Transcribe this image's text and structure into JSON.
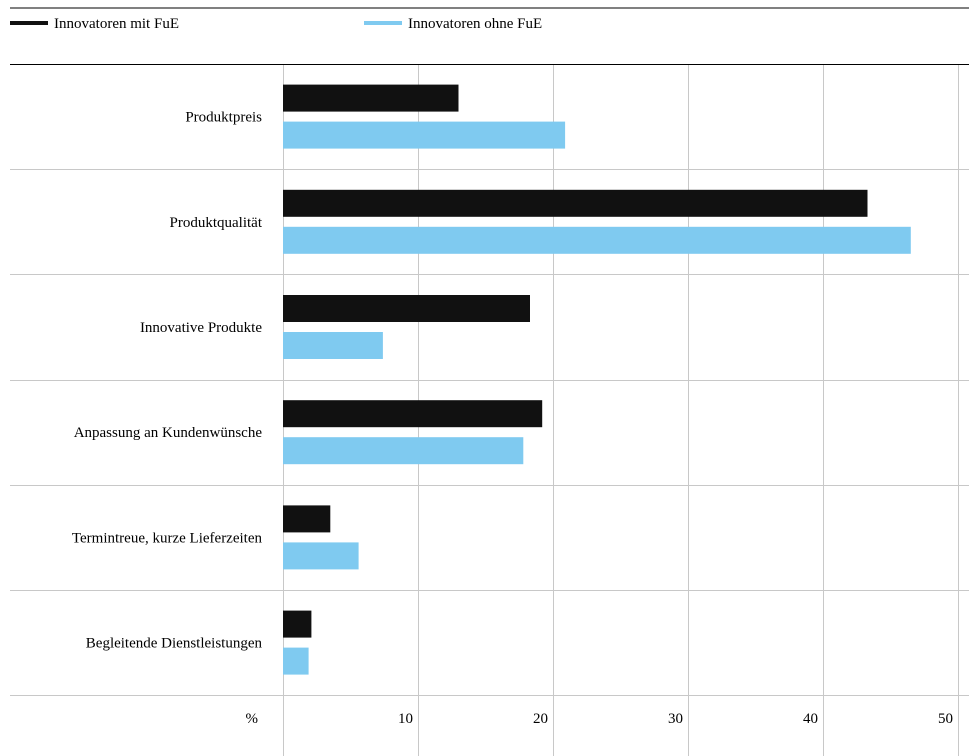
{
  "chart_data": {
    "type": "bar",
    "orientation": "horizontal",
    "categories": [
      "Produktpreis",
      "Produktqualität",
      "Innovative Produkte",
      "Anpassung an Kundenwünsche",
      "Termintreue, kurze Lieferzeiten",
      "Begleitende Dienstleistungen"
    ],
    "series": [
      {
        "name": "Innovatoren mit FuE",
        "color": "#111111",
        "values": [
          13,
          43.3,
          18.3,
          19.2,
          3.5,
          2.1
        ]
      },
      {
        "name": "Innovatoren ohne FuE",
        "color": "#7fcaf0",
        "values": [
          20.9,
          46.5,
          7.4,
          17.8,
          5.6,
          1.9
        ]
      }
    ],
    "xlim": [
      0,
      50
    ],
    "xticks": [
      10,
      20,
      30,
      40,
      50
    ],
    "unit_label": "%",
    "grid": true,
    "legend_position": "top"
  }
}
